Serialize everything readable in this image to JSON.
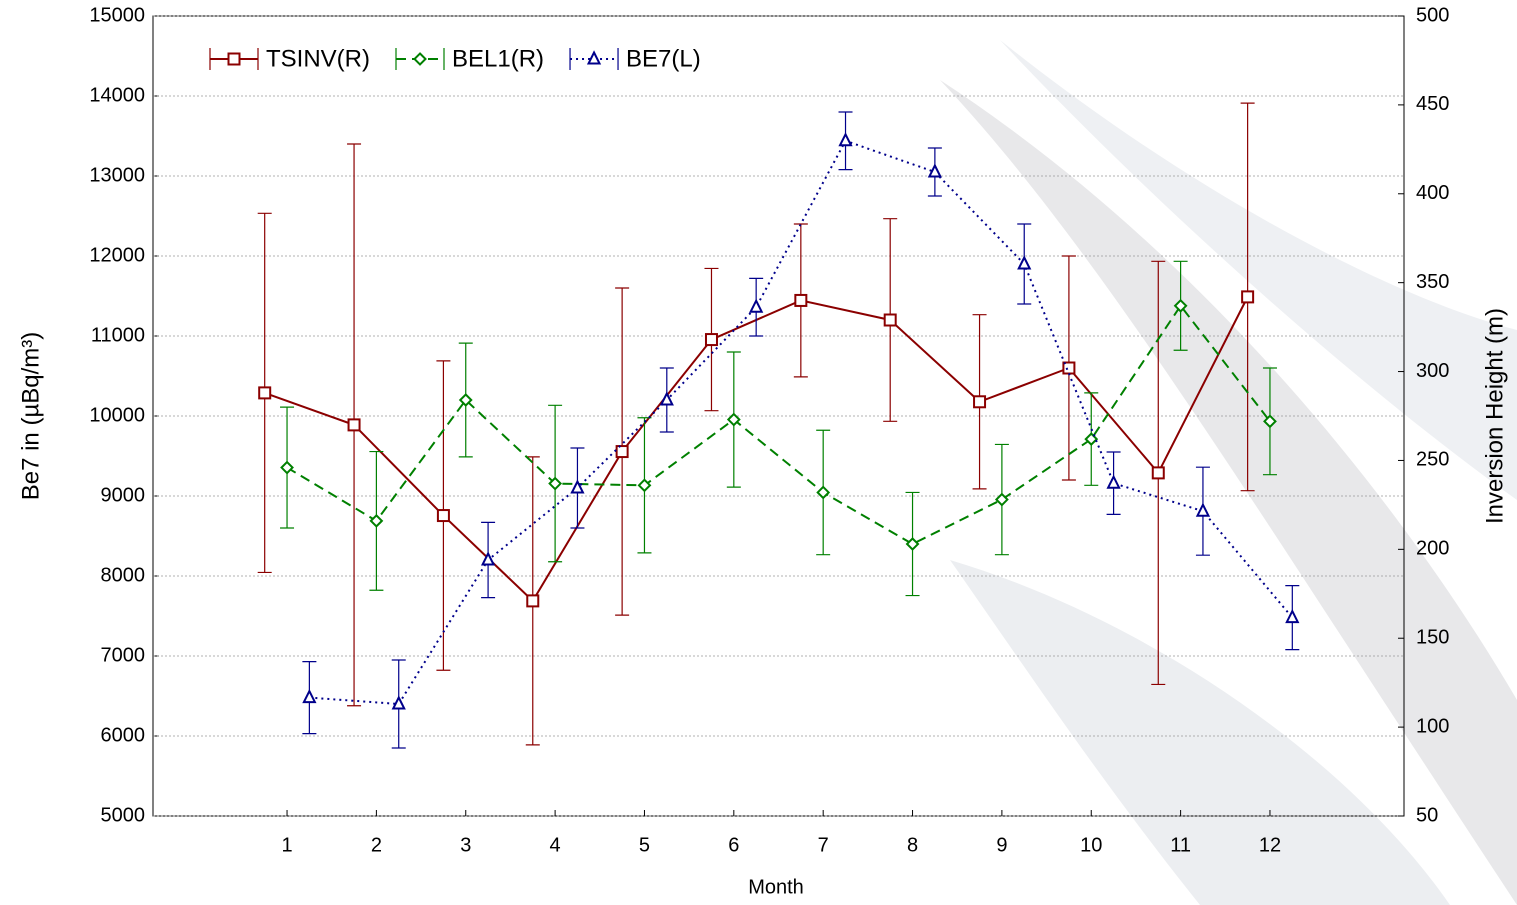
{
  "chart_data": {
    "type": "line",
    "x_label": "Month",
    "y_label": "Be7 in (µBq/m³)",
    "y2_label": "Inversion Height (m)",
    "x": [
      1,
      2,
      3,
      4,
      5,
      6,
      7,
      8,
      9,
      10,
      11,
      12
    ],
    "xlim": [
      -0.5,
      13.5
    ],
    "xticks": [
      1,
      2,
      3,
      4,
      5,
      6,
      7,
      8,
      9,
      10,
      11,
      12
    ],
    "ylim": [
      5000,
      15000
    ],
    "yticks": [
      5000,
      6000,
      7000,
      8000,
      9000,
      10000,
      11000,
      12000,
      13000,
      14000,
      15000
    ],
    "y2lim": [
      50,
      500
    ],
    "y2ticks": [
      50,
      100,
      150,
      200,
      250,
      300,
      350,
      400,
      450,
      500
    ],
    "grid": true,
    "legend": "top-left",
    "series": [
      {
        "name": "TSINV(R)",
        "color": "#8b0000",
        "axis": "y2",
        "marker": "square",
        "dash": "solid",
        "values": [
          288,
          270,
          219,
          171,
          255,
          318,
          340,
          329,
          283,
          302,
          243,
          342
        ],
        "errors": [
          101,
          158,
          87,
          81,
          92,
          40,
          43,
          57,
          49,
          63,
          119,
          109
        ]
      },
      {
        "name": "BEL1(R)",
        "color": "#008000",
        "axis": "y2",
        "marker": "diamond",
        "dash": "dashed",
        "values": [
          246,
          216,
          284,
          237,
          236,
          273,
          232,
          203,
          228,
          262,
          337,
          272
        ],
        "errors": [
          34,
          39,
          32,
          44,
          38,
          38,
          35,
          29,
          31,
          26,
          25,
          30
        ]
      },
      {
        "name": "BE7(L)",
        "color": "#00008b",
        "axis": "y",
        "marker": "triangle",
        "dash": "dotted",
        "values": [
          6480,
          6400,
          8200,
          9100,
          10200,
          11360,
          13440,
          13050,
          11900,
          9160,
          8810,
          7480
        ],
        "errors": [
          450,
          550,
          470,
          500,
          400,
          360,
          360,
          300,
          500,
          390,
          550,
          400
        ]
      }
    ]
  }
}
